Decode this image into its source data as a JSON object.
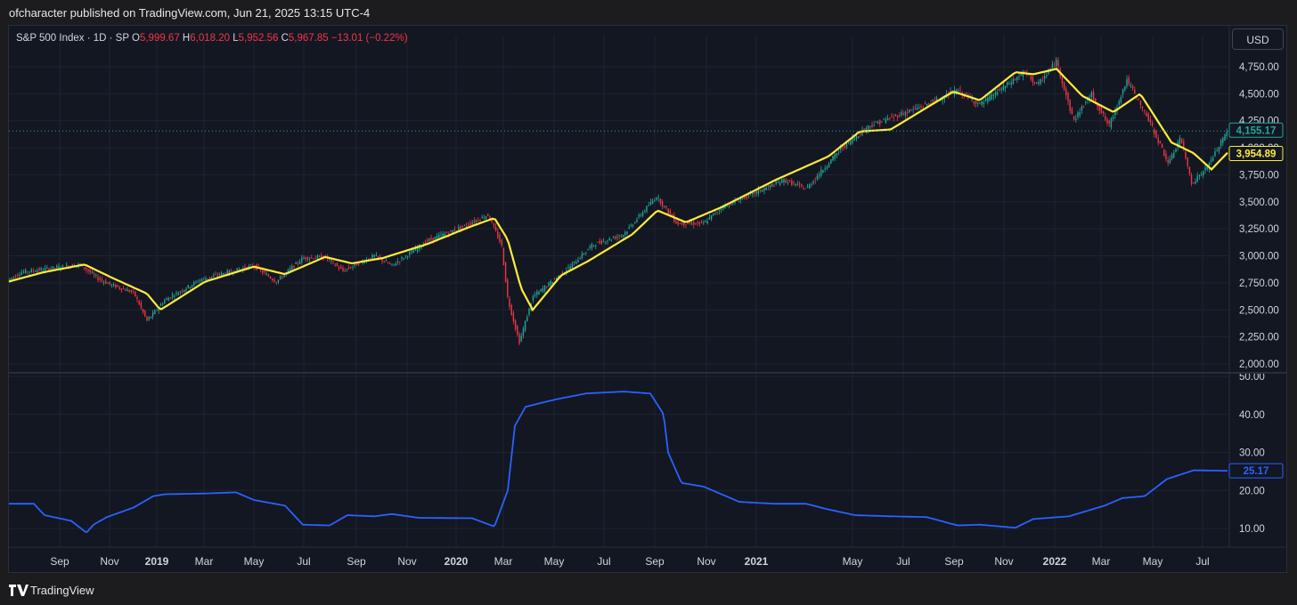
{
  "header": {
    "published": "ofcharacter published on TradingView.com, Jun 21, 2025 13:15 UTC-4"
  },
  "legend": {
    "symbol": "S&P 500 Index · 1D · SP",
    "o_label": "O",
    "o_value": "5,999.67",
    "h_label": "H",
    "h_value": "6,018.20",
    "l_label": "L",
    "l_value": "5,952.56",
    "c_label": "C",
    "c_value": "5,967.85",
    "change": "−13.01 (−0.22%)"
  },
  "currency_button": "USD",
  "footer": {
    "brand": "TradingView"
  },
  "colors": {
    "up": "#26a69a",
    "down": "#f23645",
    "ma": "#ffeb3b",
    "indicator": "#2962ff",
    "background": "#131722"
  },
  "chart_data": [
    {
      "type": "candlestick",
      "title": "S&P 500 Index · 1D · SP",
      "ylim": [
        1950,
        4850
      ],
      "y_ticks": [
        "2,000.00",
        "2,250.00",
        "2,500.00",
        "2,750.00",
        "3,000.00",
        "3,250.00",
        "3,500.00",
        "3,750.00",
        "4,000.00",
        "4,250.00",
        "4,500.00",
        "4,750.00"
      ],
      "x_ticks": [
        "Sep",
        "Nov",
        "2019",
        "Mar",
        "May",
        "Jul",
        "Sep",
        "Nov",
        "2020",
        "Mar",
        "May",
        "Jul",
        "Sep",
        "Nov",
        "2021",
        "May",
        "Jul",
        "Sep",
        "Nov",
        "2022",
        "Mar",
        "May",
        "Jul"
      ],
      "price_path": [
        [
          0,
          2740
        ],
        [
          25,
          2850
        ],
        [
          90,
          2920
        ],
        [
          110,
          2790
        ],
        [
          125,
          2730
        ],
        [
          150,
          2660
        ],
        [
          165,
          2400
        ],
        [
          185,
          2590
        ],
        [
          225,
          2780
        ],
        [
          285,
          2910
        ],
        [
          310,
          2760
        ],
        [
          340,
          2980
        ],
        [
          365,
          2990
        ],
        [
          385,
          2860
        ],
        [
          420,
          3000
        ],
        [
          440,
          2910
        ],
        [
          480,
          3140
        ],
        [
          520,
          3270
        ],
        [
          548,
          3380
        ],
        [
          563,
          3100
        ],
        [
          570,
          2600
        ],
        [
          583,
          2200
        ],
        [
          598,
          2620
        ],
        [
          640,
          2900
        ],
        [
          665,
          3100
        ],
        [
          700,
          3200
        ],
        [
          737,
          3550
        ],
        [
          760,
          3300
        ],
        [
          790,
          3300
        ],
        [
          810,
          3450
        ],
        [
          880,
          3700
        ],
        [
          905,
          3620
        ],
        [
          945,
          4000
        ],
        [
          975,
          4200
        ],
        [
          1040,
          4400
        ],
        [
          1075,
          4530
        ],
        [
          1100,
          4400
        ],
        [
          1150,
          4700
        ],
        [
          1165,
          4580
        ],
        [
          1186,
          4800
        ],
        [
          1205,
          4250
        ],
        [
          1225,
          4500
        ],
        [
          1245,
          4200
        ],
        [
          1265,
          4630
        ],
        [
          1290,
          4250
        ],
        [
          1312,
          3850
        ],
        [
          1325,
          4100
        ],
        [
          1338,
          3670
        ],
        [
          1355,
          3820
        ],
        [
          1378,
          4155
        ]
      ],
      "ma_path": [
        [
          0,
          2740
        ],
        [
          50,
          2850
        ],
        [
          95,
          2920
        ],
        [
          125,
          2800
        ],
        [
          165,
          2650
        ],
        [
          180,
          2500
        ],
        [
          230,
          2760
        ],
        [
          285,
          2900
        ],
        [
          320,
          2830
        ],
        [
          365,
          2990
        ],
        [
          395,
          2930
        ],
        [
          430,
          2980
        ],
        [
          480,
          3110
        ],
        [
          525,
          3260
        ],
        [
          555,
          3350
        ],
        [
          570,
          3150
        ],
        [
          585,
          2700
        ],
        [
          598,
          2500
        ],
        [
          630,
          2820
        ],
        [
          660,
          2950
        ],
        [
          710,
          3200
        ],
        [
          738,
          3420
        ],
        [
          770,
          3310
        ],
        [
          810,
          3450
        ],
        [
          870,
          3700
        ],
        [
          930,
          3920
        ],
        [
          965,
          4150
        ],
        [
          1000,
          4170
        ],
        [
          1070,
          4520
        ],
        [
          1100,
          4440
        ],
        [
          1140,
          4700
        ],
        [
          1160,
          4680
        ],
        [
          1186,
          4730
        ],
        [
          1215,
          4480
        ],
        [
          1250,
          4330
        ],
        [
          1280,
          4500
        ],
        [
          1315,
          4050
        ],
        [
          1340,
          3950
        ],
        [
          1360,
          3800
        ],
        [
          1378,
          3954
        ]
      ],
      "last_values": {
        "close": "4,155.17",
        "ma": "3,954.89"
      }
    },
    {
      "type": "line",
      "ylim": [
        5,
        50
      ],
      "y_ticks": [
        "10.00",
        "20.00",
        "30.00",
        "40.00",
        "50.00"
      ],
      "series": [
        {
          "values_path": [
            [
              0,
              16.5
            ],
            [
              38,
              16.5
            ],
            [
              50,
              13.5
            ],
            [
              80,
              12
            ],
            [
              97,
              8.9
            ],
            [
              105,
              11
            ],
            [
              120,
              13
            ],
            [
              150,
              15.5
            ],
            [
              172,
              18.5
            ],
            [
              185,
              19
            ],
            [
              230,
              19.2
            ],
            [
              265,
              19.5
            ],
            [
              285,
              17.5
            ],
            [
              320,
              16
            ],
            [
              340,
              11
            ],
            [
              370,
              10.8
            ],
            [
              390,
              13.5
            ],
            [
              420,
              13.2
            ],
            [
              440,
              13.8
            ],
            [
              470,
              12.8
            ],
            [
              530,
              12.7
            ],
            [
              555,
              10.5
            ],
            [
              570,
              20
            ],
            [
              578,
              37
            ],
            [
              590,
              42
            ],
            [
              625,
              44
            ],
            [
              658,
              45.5
            ],
            [
              700,
              46
            ],
            [
              730,
              45.5
            ],
            [
              745,
              40
            ],
            [
              750,
              30
            ],
            [
              765,
              22
            ],
            [
              790,
              21
            ],
            [
              830,
              17
            ],
            [
              870,
              16.5
            ],
            [
              905,
              16.5
            ],
            [
              930,
              15
            ],
            [
              960,
              13.5
            ],
            [
              1000,
              13.2
            ],
            [
              1040,
              13
            ],
            [
              1075,
              10.8
            ],
            [
              1100,
              11
            ],
            [
              1140,
              10.2
            ],
            [
              1160,
              12.5
            ],
            [
              1200,
              13.2
            ],
            [
              1240,
              16
            ],
            [
              1260,
              18
            ],
            [
              1285,
              18.5
            ],
            [
              1310,
              23
            ],
            [
              1340,
              25.3
            ],
            [
              1378,
              25.17
            ]
          ]
        }
      ],
      "last_value": "25.17"
    }
  ]
}
